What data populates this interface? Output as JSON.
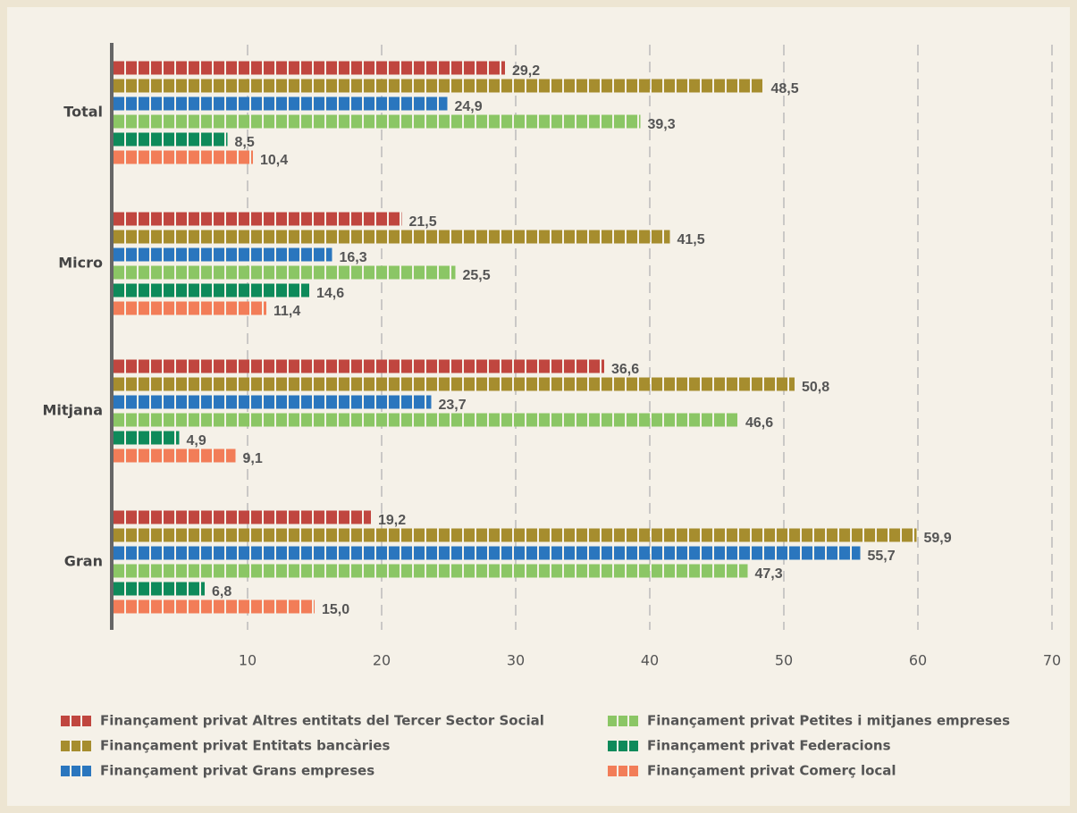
{
  "chart_data": {
    "type": "hbar",
    "categories": [
      "Total",
      "Micro",
      "Mitjana",
      "Gran"
    ],
    "series": [
      {
        "name": "Finançament privat Altres entitats del Tercer Sector Social",
        "color": "#c0463f",
        "values": [
          29.2,
          21.5,
          36.6,
          19.2
        ],
        "value_labels": [
          "29,2",
          "21,5",
          "36,6",
          "19,2"
        ]
      },
      {
        "name": "Finançament privat Entitats bancàries",
        "color": "#a68d2e",
        "values": [
          48.5,
          41.5,
          50.8,
          59.9
        ],
        "value_labels": [
          "48,5",
          "41,5",
          "50,8",
          "59,9"
        ]
      },
      {
        "name": "Finançament privat Grans empreses",
        "color": "#2a76be",
        "values": [
          24.9,
          16.3,
          23.7,
          55.7
        ],
        "value_labels": [
          "24,9",
          "16,3",
          "23,7",
          "55,7"
        ]
      },
      {
        "name": "Finançament privat Petites i mitjanes empreses",
        "color": "#8bc665",
        "values": [
          39.3,
          25.5,
          46.6,
          47.3
        ],
        "value_labels": [
          "39,3",
          "25,5",
          "46,6",
          "47,3"
        ]
      },
      {
        "name": "Finançament privat Federacions",
        "color": "#0e8a5a",
        "values": [
          8.5,
          14.6,
          4.9,
          6.8
        ],
        "value_labels": [
          "8,5",
          "14,6",
          "4,9",
          "6,8"
        ]
      },
      {
        "name": "Finançament privat Comerç local",
        "color": "#f27d58",
        "values": [
          10.4,
          11.4,
          9.1,
          15.0
        ],
        "value_labels": [
          "10,4",
          "11,4",
          "9,1",
          "15,0"
        ]
      }
    ],
    "xlim": [
      0,
      70
    ],
    "xticks": [
      10,
      20,
      30,
      40,
      50,
      60,
      70
    ],
    "grid": true
  }
}
